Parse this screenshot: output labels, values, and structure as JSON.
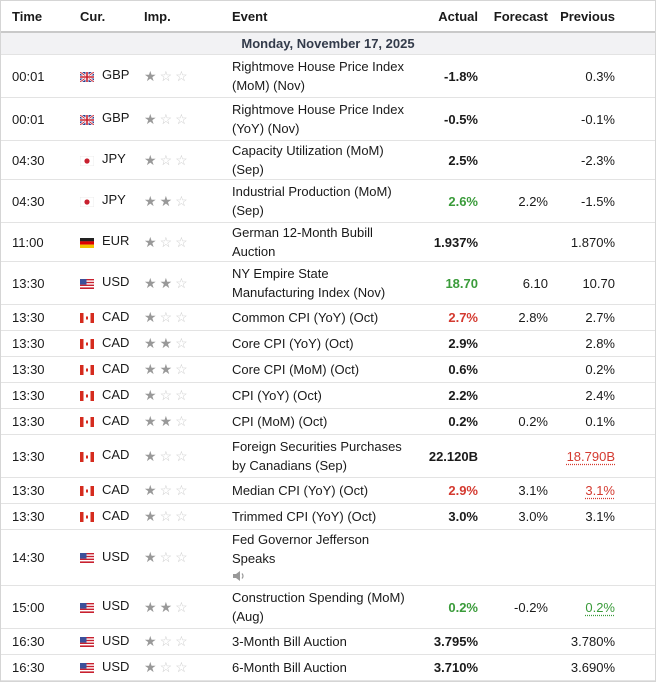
{
  "headers": {
    "time": "Time",
    "cur": "Cur.",
    "imp": "Imp.",
    "event": "Event",
    "actual": "Actual",
    "forecast": "Forecast",
    "previous": "Previous"
  },
  "date": "Monday, November 17, 2025",
  "colors": {
    "negative": "#d43a30",
    "positive": "#3a9b3a",
    "star": "#999999"
  },
  "rows": [
    {
      "time": "00:01",
      "cur": "GBP",
      "flag": "uk-flag",
      "imp": 1,
      "event": "Rightmove House Price Index (MoM) (Nov)",
      "actual": "-1.8%",
      "forecast": "",
      "previous": "0.3%"
    },
    {
      "time": "00:01",
      "cur": "GBP",
      "flag": "uk-flag",
      "imp": 1,
      "event": "Rightmove House Price Index (YoY) (Nov)",
      "actual": "-0.5%",
      "forecast": "",
      "previous": "-0.1%"
    },
    {
      "time": "04:30",
      "cur": "JPY",
      "flag": "japan-flag",
      "imp": 1,
      "event": "Capacity Utilization (MoM) (Sep)",
      "actual": "2.5%",
      "forecast": "",
      "previous": "-2.3%"
    },
    {
      "time": "04:30",
      "cur": "JPY",
      "flag": "japan-flag",
      "imp": 2,
      "event": "Industrial Production (MoM) (Sep)",
      "actual": "2.6%",
      "actual_color": "green",
      "forecast": "2.2%",
      "previous": "-1.5%"
    },
    {
      "time": "11:00",
      "cur": "EUR",
      "flag": "germany-flag",
      "imp": 1,
      "event": "German 12-Month Bubill Auction",
      "actual": "1.937%",
      "forecast": "",
      "previous": "1.870%"
    },
    {
      "time": "13:30",
      "cur": "USD",
      "flag": "us-flag",
      "imp": 2,
      "event": "NY Empire State Manufacturing Index (Nov)",
      "actual": "18.70",
      "actual_color": "green",
      "forecast": "6.10",
      "previous": "10.70"
    },
    {
      "time": "13:30",
      "cur": "CAD",
      "flag": "canada-flag",
      "imp": 1,
      "event": "Common CPI (YoY) (Oct)",
      "actual": "2.7%",
      "actual_color": "red",
      "forecast": "2.8%",
      "previous": "2.7%"
    },
    {
      "time": "13:30",
      "cur": "CAD",
      "flag": "canada-flag",
      "imp": 2,
      "event": "Core CPI (YoY) (Oct)",
      "actual": "2.9%",
      "forecast": "",
      "previous": "2.8%"
    },
    {
      "time": "13:30",
      "cur": "CAD",
      "flag": "canada-flag",
      "imp": 2,
      "event": "Core CPI (MoM) (Oct)",
      "actual": "0.6%",
      "forecast": "",
      "previous": "0.2%"
    },
    {
      "time": "13:30",
      "cur": "CAD",
      "flag": "canada-flag",
      "imp": 1,
      "event": "CPI (YoY) (Oct)",
      "actual": "2.2%",
      "forecast": "",
      "previous": "2.4%"
    },
    {
      "time": "13:30",
      "cur": "CAD",
      "flag": "canada-flag",
      "imp": 2,
      "event": "CPI (MoM) (Oct)",
      "actual": "0.2%",
      "forecast": "0.2%",
      "previous": "0.1%"
    },
    {
      "time": "13:30",
      "cur": "CAD",
      "flag": "canada-flag",
      "imp": 1,
      "event": "Foreign Securities Purchases by Canadians (Sep)",
      "actual": "22.120B",
      "forecast": "",
      "previous": "18.790B",
      "previous_color": "red"
    },
    {
      "time": "13:30",
      "cur": "CAD",
      "flag": "canada-flag",
      "imp": 1,
      "event": "Median CPI (YoY) (Oct)",
      "actual": "2.9%",
      "actual_color": "red",
      "forecast": "3.1%",
      "previous": "3.1%",
      "previous_color": "red"
    },
    {
      "time": "13:30",
      "cur": "CAD",
      "flag": "canada-flag",
      "imp": 1,
      "event": "Trimmed CPI (YoY) (Oct)",
      "actual": "3.0%",
      "forecast": "3.0%",
      "previous": "3.1%"
    },
    {
      "time": "14:30",
      "cur": "USD",
      "flag": "us-flag",
      "imp": 1,
      "event": "Fed Governor Jefferson Speaks",
      "speech": true,
      "actual": "",
      "forecast": "",
      "previous": ""
    },
    {
      "time": "15:00",
      "cur": "USD",
      "flag": "us-flag",
      "imp": 2,
      "event": "Construction Spending (MoM) (Aug)",
      "actual": "0.2%",
      "actual_color": "green",
      "forecast": "-0.2%",
      "previous": "0.2%",
      "previous_color": "green"
    },
    {
      "time": "16:30",
      "cur": "USD",
      "flag": "us-flag",
      "imp": 1,
      "event": "3-Month Bill Auction",
      "actual": "3.795%",
      "forecast": "",
      "previous": "3.780%"
    },
    {
      "time": "16:30",
      "cur": "USD",
      "flag": "us-flag",
      "imp": 1,
      "event": "6-Month Bill Auction",
      "actual": "3.710%",
      "forecast": "",
      "previous": "3.690%"
    }
  ]
}
